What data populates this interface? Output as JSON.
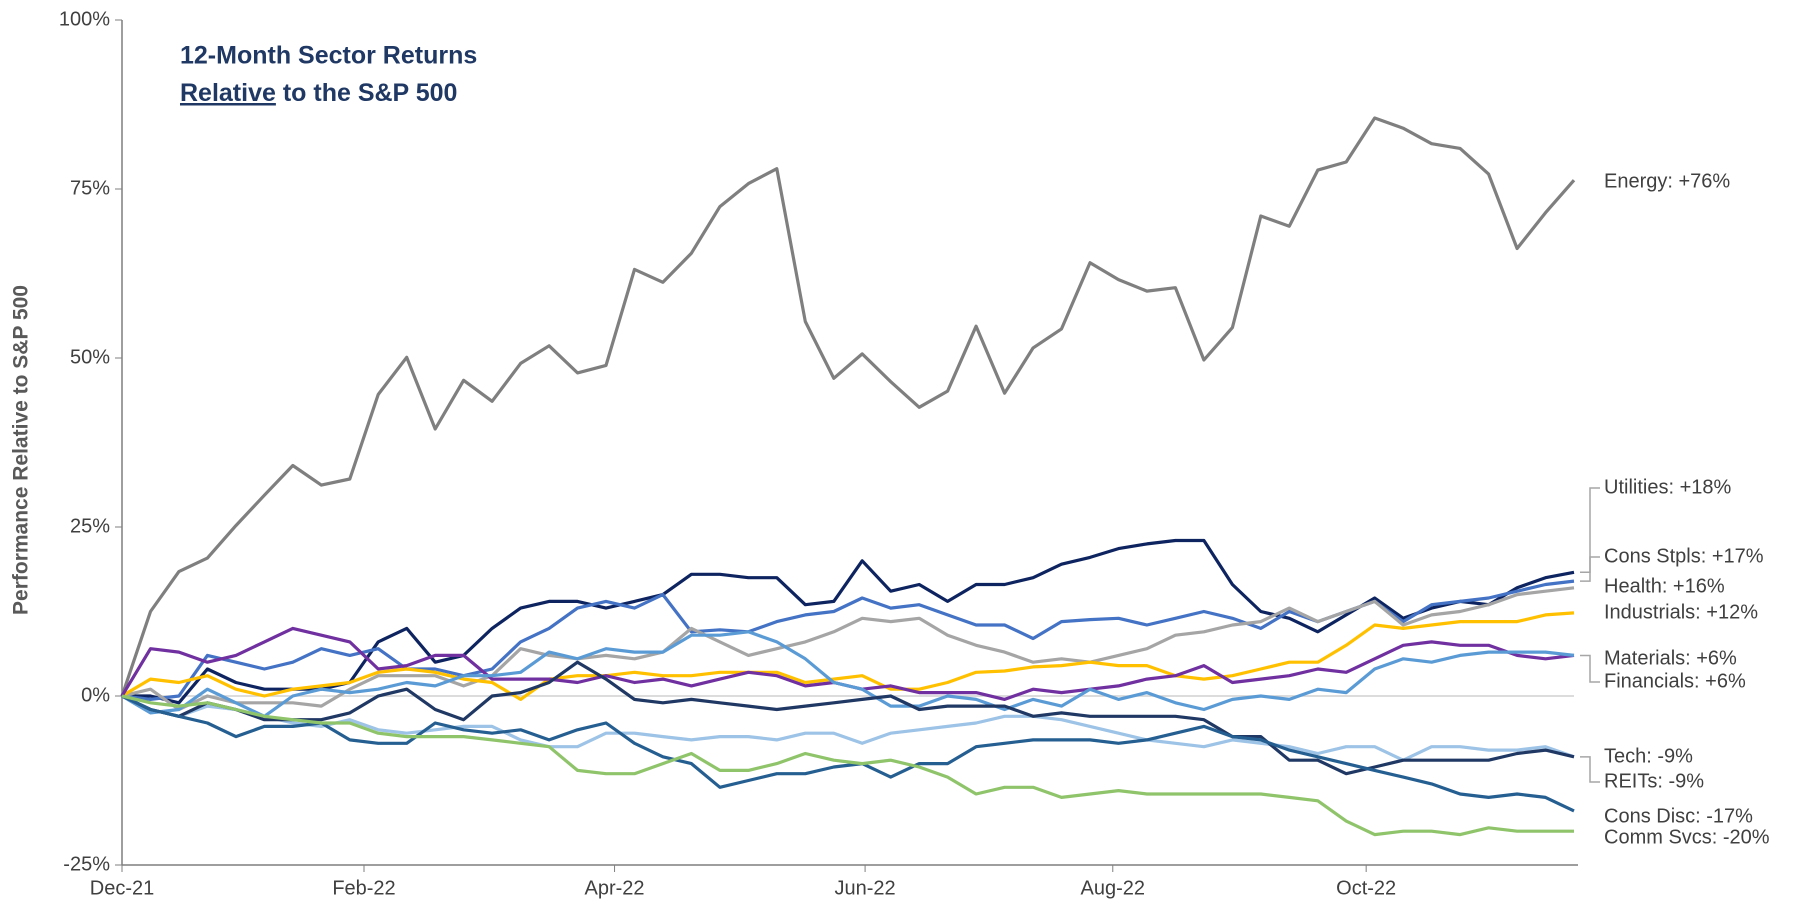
{
  "chart_data": {
    "type": "line",
    "title": "12-Month Sector Returns",
    "subtitle": "Relative to the S&P 500",
    "y_label": "Performance Relative to S&P 500",
    "xlim": [
      0,
      51
    ],
    "xticks": [
      {
        "value": 0,
        "label": "Dec-21"
      },
      {
        "value": 8.5,
        "label": "Feb-22"
      },
      {
        "value": 17.3,
        "label": "Apr-22"
      },
      {
        "value": 26.1,
        "label": "Jun-22"
      },
      {
        "value": 34.8,
        "label": "Aug-22"
      },
      {
        "value": 43.7,
        "label": "Oct-22"
      }
    ],
    "ylim": [
      -25,
      100
    ],
    "yticks": [
      {
        "value": -25,
        "label": "-25%"
      },
      {
        "value": 0,
        "label": "0%"
      },
      {
        "value": 25,
        "label": "25%"
      },
      {
        "value": 50,
        "label": "50%"
      },
      {
        "value": 75,
        "label": "75%"
      },
      {
        "value": 100,
        "label": "100%"
      }
    ],
    "x": [
      0,
      1,
      2,
      3,
      4,
      5,
      6,
      7,
      8,
      9,
      10,
      11,
      12,
      13,
      14,
      15,
      16,
      17,
      18,
      19,
      20,
      21,
      22,
      23,
      24,
      25,
      26,
      27,
      28,
      29,
      30,
      31,
      32,
      33,
      34,
      35,
      36,
      37,
      38,
      39,
      40,
      41,
      42,
      43,
      44,
      45,
      46,
      47,
      48,
      49,
      50,
      51
    ],
    "series": [
      {
        "name": "Energy: +76%",
        "color": "#7f7f7f",
        "values": [
          0,
          12.5,
          18.4,
          20.4,
          25.2,
          29.7,
          34.1,
          31.2,
          32.1,
          44.6,
          50.1,
          39.5,
          46.7,
          43.6,
          49.2,
          51.8,
          47.8,
          48.9,
          63.1,
          61.2,
          65.5,
          72.4,
          75.8,
          78.0,
          55.4,
          47.0,
          50.6,
          46.5,
          42.7,
          45.1,
          54.7,
          44.8,
          51.5,
          54.3,
          64.1,
          61.6,
          59.9,
          60.4,
          49.7,
          54.5,
          71.0,
          69.5,
          77.8,
          79.0,
          85.5,
          84.0,
          81.7,
          81.0,
          77.2,
          66.2,
          71.5,
          76.3
        ]
      },
      {
        "name": "Utilities: +18%",
        "color": "#0d2460",
        "values": [
          0,
          0,
          -1,
          4,
          2,
          1,
          1,
          1,
          2,
          8,
          10,
          5,
          6,
          10,
          13,
          14,
          14,
          13,
          14,
          15,
          18,
          18,
          17.5,
          17.5,
          13.5,
          14,
          20,
          15.5,
          16.5,
          14,
          16.5,
          16.5,
          17.5,
          19.5,
          20.5,
          21.8,
          22.5,
          23,
          23,
          16.5,
          12.5,
          11.5,
          9.5,
          12,
          14.5,
          11.5,
          13,
          14,
          13.5,
          16,
          17.5,
          18.3
        ]
      },
      {
        "name": "Cons Stpls: +17%",
        "color": "#4472c4",
        "values": [
          0,
          -0.5,
          0,
          6,
          5,
          4,
          5,
          7,
          6,
          7,
          4,
          4,
          3,
          4,
          8,
          10,
          13,
          14,
          13,
          15,
          9.5,
          9.8,
          9.5,
          11,
          12,
          12.5,
          14.5,
          13,
          13.5,
          12,
          10.5,
          10.5,
          8.5,
          11,
          11.3,
          11.5,
          10.5,
          11.5,
          12.5,
          11.5,
          10,
          12.5,
          11,
          12.5,
          14,
          11,
          13.5,
          14,
          14.5,
          15.5,
          16.5,
          17
        ]
      },
      {
        "name": "Health: +16%",
        "color": "#a5a5a5",
        "values": [
          0,
          1,
          -2,
          0,
          -1,
          -1,
          -1,
          -1.5,
          1,
          3,
          3,
          3,
          1.5,
          3,
          7,
          6,
          5.5,
          6,
          5.5,
          6.5,
          10,
          8,
          6,
          7,
          8,
          9.5,
          11.5,
          11,
          11.5,
          9,
          7.5,
          6.5,
          5,
          5.5,
          5,
          6,
          7,
          9,
          9.5,
          10.5,
          11,
          13,
          11,
          12.5,
          14,
          10.5,
          12,
          12.5,
          13.5,
          15,
          15.5,
          16
        ]
      },
      {
        "name": "Industrials: +12%",
        "color": "#ffc000",
        "values": [
          0,
          2.5,
          2,
          3,
          1,
          0,
          1,
          1.5,
          2,
          3.5,
          4,
          3.5,
          2.5,
          2,
          -0.5,
          2.5,
          3,
          3,
          3.5,
          3,
          3,
          3.5,
          3.5,
          3.5,
          2,
          2.5,
          3,
          1,
          1,
          2,
          3.5,
          3.7,
          4.3,
          4.5,
          5,
          4.5,
          4.5,
          3,
          2.5,
          3,
          4,
          5,
          5,
          7.5,
          10.5,
          10,
          10.5,
          11,
          11,
          11,
          12,
          12.3
        ]
      },
      {
        "name": "Materials: +6%",
        "color": "#7030a0",
        "values": [
          0,
          7,
          6.5,
          5,
          6,
          8,
          10,
          9,
          8,
          4,
          4.5,
          6,
          6,
          2.5,
          2.5,
          2.5,
          2,
          3,
          2,
          2.5,
          1.5,
          2.5,
          3.5,
          3,
          1.5,
          2,
          1,
          1.5,
          0.5,
          0.5,
          0.5,
          -0.5,
          1,
          0.5,
          1,
          1.5,
          2.5,
          3,
          4.5,
          2,
          2.5,
          3,
          4,
          3.5,
          5.5,
          7.5,
          8,
          7.5,
          7.5,
          6,
          5.5,
          6
        ]
      },
      {
        "name": "Financials: +6%",
        "color": "#5b9bd5",
        "values": [
          0,
          -2.5,
          -2,
          1,
          -1,
          -3,
          0,
          1,
          0.5,
          1,
          2,
          1.5,
          3,
          3,
          3.5,
          6.5,
          5.5,
          7,
          6.5,
          6.5,
          9,
          9,
          9.5,
          8,
          5.5,
          2,
          1,
          -1.5,
          -1.5,
          0,
          -0.5,
          -2,
          -0.5,
          -1.5,
          1,
          -0.5,
          0.5,
          -1,
          -2,
          -0.5,
          0,
          -0.5,
          1,
          0.5,
          4,
          5.5,
          5,
          6,
          6.5,
          6.5,
          6.5,
          6
        ]
      },
      {
        "name": "Tech: -9%",
        "color": "#9dc3e6",
        "values": [
          0,
          -2,
          -3,
          -1.5,
          -2,
          -3,
          -4,
          -4.5,
          -3.5,
          -5,
          -5.5,
          -5,
          -4.5,
          -4.5,
          -6.5,
          -7.5,
          -7.5,
          -5.5,
          -5.5,
          -6,
          -6.5,
          -6,
          -6,
          -6.5,
          -5.5,
          -5.5,
          -7,
          -5.5,
          -5,
          -4.5,
          -4,
          -3,
          -3,
          -3.5,
          -4.5,
          -5.5,
          -6.5,
          -7,
          -7.5,
          -6.5,
          -7,
          -7.5,
          -8.5,
          -7.5,
          -7.5,
          -9.5,
          -7.5,
          -7.5,
          -8,
          -8,
          -7.5,
          -9
        ]
      },
      {
        "name": "REITs: -9%",
        "color": "#203864",
        "values": [
          0,
          -2,
          -3,
          -1,
          -2,
          -3.5,
          -3.5,
          -3.5,
          -2.5,
          0,
          1,
          -2,
          -3.5,
          0,
          0.5,
          2,
          5,
          2.5,
          -0.5,
          -1,
          -0.5,
          -1,
          -1.5,
          -2,
          -1.5,
          -1,
          -0.5,
          0,
          -2,
          -1.5,
          -1.5,
          -1.5,
          -3,
          -2.5,
          -3,
          -3,
          -3,
          -3,
          -3.5,
          -6,
          -6,
          -9.5,
          -9.5,
          -11.5,
          -10.5,
          -9.5,
          -9.5,
          -9.5,
          -9.5,
          -8.5,
          -8,
          -9
        ]
      },
      {
        "name": "Cons Disc: -17%",
        "color": "#255e91",
        "values": [
          0,
          -2,
          -3,
          -4,
          -6,
          -4.5,
          -4.5,
          -4,
          -6.5,
          -7,
          -7,
          -4,
          -5,
          -5.5,
          -5,
          -6.5,
          -5,
          -4,
          -7,
          -9,
          -10,
          -13.5,
          -12.5,
          -11.5,
          -11.5,
          -10.5,
          -10,
          -12,
          -10,
          -10,
          -7.5,
          -7,
          -6.5,
          -6.5,
          -6.5,
          -7,
          -6.5,
          -5.5,
          -4.5,
          -6,
          -6.5,
          -8,
          -9,
          -10,
          -11,
          -12,
          -13,
          -14.5,
          -15,
          -14.5,
          -15,
          -17
        ]
      },
      {
        "name": "Comm Svcs: -20%",
        "color": "#8fc46b",
        "values": [
          0,
          -1,
          -1.5,
          -1,
          -2,
          -3,
          -3.5,
          -4,
          -4,
          -5.5,
          -6,
          -6,
          -6,
          -6.5,
          -7,
          -7.5,
          -11,
          -11.5,
          -11.5,
          -10,
          -8.5,
          -11,
          -11,
          -10,
          -8.5,
          -9.5,
          -10,
          -9.5,
          -10.5,
          -12,
          -14.5,
          -13.5,
          -13.5,
          -15,
          -14.5,
          -14,
          -14.5,
          -14.5,
          -14.5,
          -14.5,
          -14.5,
          -15,
          -15.5,
          -18.5,
          -20.5,
          -20,
          -20,
          -20.5,
          -19.5,
          -20,
          -20,
          -20
        ]
      }
    ]
  }
}
